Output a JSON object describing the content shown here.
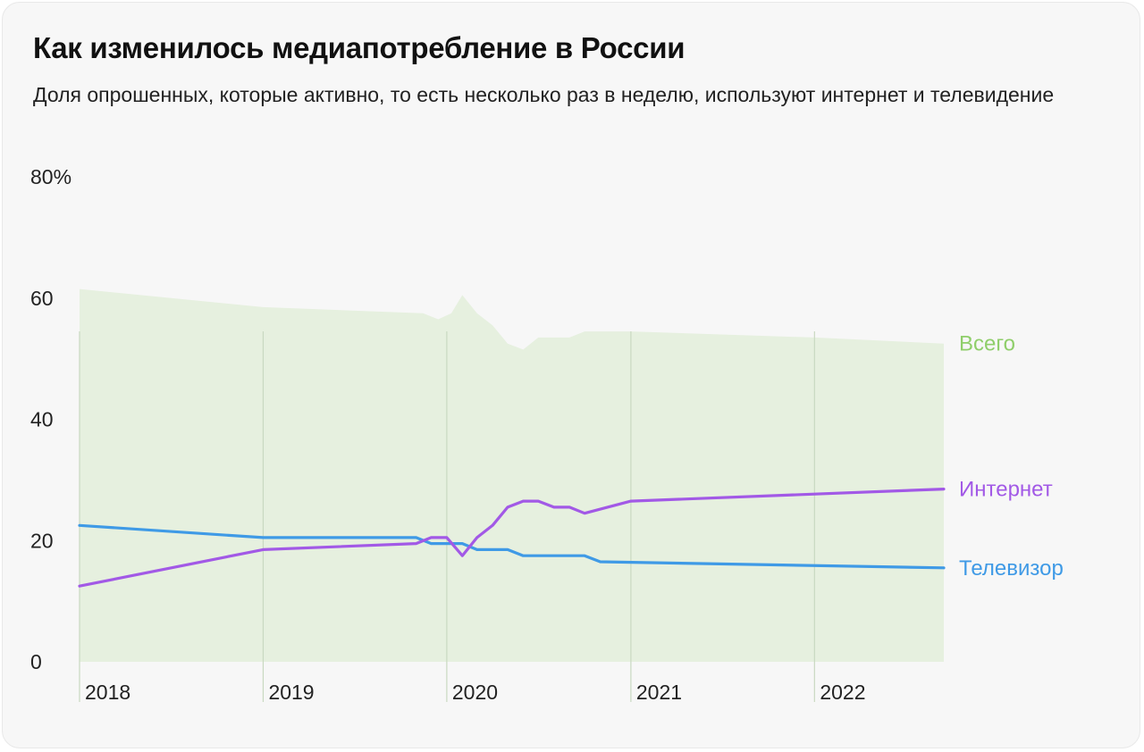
{
  "colors": {
    "background": "#f7f7f7",
    "total_area": "#e6f0df",
    "total_label": "#8fce6a",
    "internet": "#a259e6",
    "tv": "#3f9ae6",
    "grid": "#c9d9c1"
  },
  "chart_data": {
    "type": "line",
    "title": "Как изменилось медиапотребление в России",
    "subtitle": "Доля опрошенных, которые активно, то есть несколько раз в неделю, используют интернет и телевидение",
    "ylim": [
      0,
      80
    ],
    "y_ticks": [
      "0",
      "20",
      "40",
      "60",
      "80%"
    ],
    "y_tick_values": [
      0,
      20,
      40,
      60,
      80
    ],
    "x_ticks": [
      "2018",
      "2019",
      "2020",
      "2021",
      "2022"
    ],
    "x_tick_values": [
      "2018-01-01",
      "2019-01-01",
      "2020-01-01",
      "2021-01-01",
      "2022-01-01"
    ],
    "xlim": [
      "2018-01-01",
      "2022-09-15"
    ],
    "grid": true,
    "series": [
      {
        "name": "Всего",
        "kind": "area",
        "color": "#e6f0df",
        "label_color": "#8fce6a",
        "points": [
          [
            "2018-01-01",
            61.5
          ],
          [
            "2019-01-01",
            58.5
          ],
          [
            "2019-11-15",
            57.5
          ],
          [
            "2019-12-15",
            56.5
          ],
          [
            "2020-01-10",
            57.5
          ],
          [
            "2020-02-01",
            60.5
          ],
          [
            "2020-03-01",
            57.5
          ],
          [
            "2020-04-01",
            55.5
          ],
          [
            "2020-05-01",
            52.5
          ],
          [
            "2020-06-01",
            51.5
          ],
          [
            "2020-07-01",
            53.5
          ],
          [
            "2020-09-01",
            53.5
          ],
          [
            "2020-10-01",
            54.5
          ],
          [
            "2021-01-01",
            54.5
          ],
          [
            "2022-01-01",
            53.5
          ],
          [
            "2022-09-15",
            52.5
          ]
        ]
      },
      {
        "name": "Интернет",
        "kind": "line",
        "color": "#a259e6",
        "points": [
          [
            "2018-01-01",
            12.5
          ],
          [
            "2019-01-01",
            18.5
          ],
          [
            "2019-11-01",
            19.5
          ],
          [
            "2019-12-01",
            20.5
          ],
          [
            "2020-01-01",
            20.5
          ],
          [
            "2020-02-01",
            17.5
          ],
          [
            "2020-03-01",
            20.5
          ],
          [
            "2020-04-01",
            22.5
          ],
          [
            "2020-05-01",
            25.5
          ],
          [
            "2020-06-01",
            26.5
          ],
          [
            "2020-07-01",
            26.5
          ],
          [
            "2020-08-01",
            25.5
          ],
          [
            "2020-09-01",
            25.5
          ],
          [
            "2020-10-01",
            24.5
          ],
          [
            "2021-01-01",
            26.5
          ],
          [
            "2022-09-15",
            28.5
          ]
        ]
      },
      {
        "name": "Телевизор",
        "kind": "line",
        "color": "#3f9ae6",
        "points": [
          [
            "2018-01-01",
            22.5
          ],
          [
            "2019-01-01",
            20.5
          ],
          [
            "2019-11-01",
            20.5
          ],
          [
            "2019-12-01",
            19.5
          ],
          [
            "2020-02-01",
            19.5
          ],
          [
            "2020-03-01",
            18.5
          ],
          [
            "2020-05-01",
            18.5
          ],
          [
            "2020-06-01",
            17.5
          ],
          [
            "2020-10-01",
            17.5
          ],
          [
            "2020-11-01",
            16.5
          ],
          [
            "2022-09-15",
            15.5
          ]
        ]
      }
    ]
  }
}
